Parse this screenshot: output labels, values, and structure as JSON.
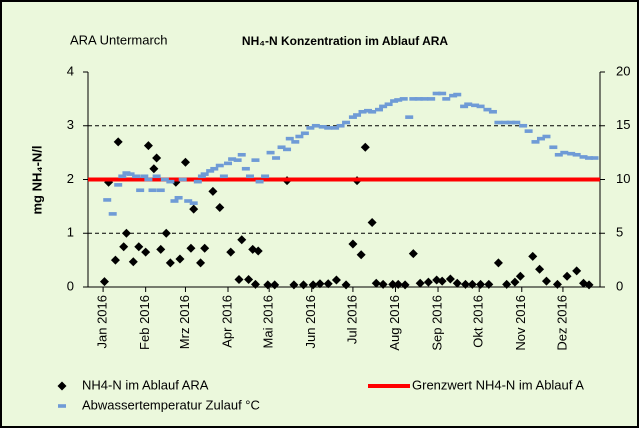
{
  "chart_data": {
    "type": "scatter",
    "title": "NH₄-N Konzentration im Ablauf ARA",
    "annotation": "ARA Untermarch",
    "y_label": "mg NH₄-N/l",
    "xlim": [
      -11,
      362
    ],
    "xticks": [
      {
        "value": 0,
        "label": "Jan 2016"
      },
      {
        "value": 31,
        "label": "Feb 2016"
      },
      {
        "value": 60,
        "label": "Mrz 2016"
      },
      {
        "value": 91,
        "label": "Apr 2016"
      },
      {
        "value": 121,
        "label": "Mai 2016"
      },
      {
        "value": 152,
        "label": "Jun 2016"
      },
      {
        "value": 182,
        "label": "Jul 2016"
      },
      {
        "value": 213,
        "label": "Aug 2016"
      },
      {
        "value": 244,
        "label": "Sep 2016"
      },
      {
        "value": 274,
        "label": "Okt 2016"
      },
      {
        "value": 305,
        "label": "Nov 2016"
      },
      {
        "value": 335,
        "label": "Dez 2016"
      }
    ],
    "ylim": [
      0,
      4
    ],
    "yticks": [
      0,
      1,
      2,
      3,
      4
    ],
    "y2lim": [
      0,
      20
    ],
    "y2ticks": [
      0,
      5,
      10,
      15,
      20
    ],
    "grid": true,
    "series": [
      {
        "name": "NH4-N im Ablauf ARA",
        "color": "#000000",
        "marker": "diamond",
        "axis": "y",
        "x": [
          1,
          4,
          11,
          9,
          15,
          17,
          22,
          26,
          31,
          33,
          37,
          39,
          42,
          46,
          49,
          53,
          56,
          60,
          64,
          66,
          71,
          74,
          80,
          85,
          93,
          101,
          99,
          109,
          113,
          106,
          111,
          120,
          125,
          134,
          139,
          146,
          153,
          158,
          164,
          170,
          177,
          182,
          185,
          188,
          191,
          196,
          199,
          204,
          211,
          215,
          220,
          226,
          231,
          237,
          243,
          247,
          253,
          258,
          264,
          269,
          275,
          281,
          288,
          294,
          300,
          304,
          313,
          318,
          323,
          331,
          338,
          345,
          350,
          354
        ],
        "values": [
          0.1,
          1.95,
          2.7,
          0.5,
          0.75,
          1.0,
          0.47,
          0.75,
          0.65,
          2.63,
          2.2,
          2.4,
          0.7,
          1.0,
          0.45,
          1.95,
          0.52,
          2.32,
          0.72,
          1.45,
          0.45,
          0.72,
          1.78,
          1.48,
          0.65,
          0.88,
          0.14,
          0.7,
          0.67,
          0.14,
          0.05,
          0.04,
          0.04,
          1.98,
          0.04,
          0.04,
          0.04,
          0.06,
          0.06,
          0.13,
          0.04,
          0.8,
          1.98,
          0.6,
          2.6,
          1.2,
          0.07,
          0.05,
          0.05,
          0.05,
          0.04,
          0.62,
          0.07,
          0.09,
          0.13,
          0.11,
          0.15,
          0.07,
          0.05,
          0.05,
          0.05,
          0.05,
          0.45,
          0.05,
          0.09,
          0.2,
          0.57,
          0.33,
          0.11,
          0.05,
          0.2,
          0.3,
          0.07,
          0.04
        ]
      },
      {
        "name": "Grenzwert NH4-N im Ablauf A",
        "color": "#ff0000",
        "marker": "line",
        "axis": "y",
        "x": [
          -11,
          362
        ],
        "values": [
          2,
          2
        ]
      },
      {
        "name": "Abwassertemperatur Zulauf °C",
        "color": "#6f9bd6",
        "marker": "dash",
        "axis": "y2",
        "x": [
          3,
          7,
          11,
          14,
          17,
          20,
          24,
          27,
          30,
          33,
          36,
          39,
          42,
          45,
          49,
          52,
          55,
          58,
          62,
          66,
          69,
          72,
          74,
          78,
          81,
          85,
          88,
          91,
          94,
          98,
          101,
          104,
          107,
          111,
          114,
          118,
          122,
          126,
          130,
          134,
          136,
          140,
          143,
          147,
          151,
          155,
          160,
          164,
          169,
          173,
          177,
          182,
          185,
          189,
          193,
          196,
          201,
          204,
          208,
          212,
          215,
          219,
          223,
          226,
          230,
          234,
          239,
          243,
          247,
          250,
          255,
          258,
          263,
          266,
          271,
          275,
          280,
          284,
          288,
          293,
          297,
          301,
          306,
          310,
          315,
          319,
          323,
          328,
          332,
          336,
          341,
          345,
          350,
          354,
          358
        ],
        "values": [
          8.1,
          6.8,
          9.5,
          10.3,
          10.6,
          10.5,
          10.3,
          9.0,
          10.3,
          10.0,
          9.0,
          10.3,
          9.0,
          10.0,
          9.8,
          8.0,
          8.3,
          10.0,
          8.0,
          7.8,
          9.8,
          10.3,
          10.5,
          10.8,
          11.0,
          11.3,
          10.3,
          11.5,
          11.9,
          11.8,
          12.3,
          11.0,
          10.3,
          11.8,
          9.8,
          10.3,
          12.5,
          12.0,
          13.0,
          12.8,
          13.8,
          13.5,
          14.0,
          14.3,
          14.8,
          15.0,
          14.9,
          14.8,
          14.8,
          15.0,
          15.3,
          15.8,
          16.0,
          16.3,
          16.4,
          16.3,
          16.5,
          16.8,
          17.0,
          17.3,
          17.4,
          17.5,
          15.8,
          17.5,
          17.5,
          17.5,
          17.5,
          18.0,
          18.0,
          17.5,
          17.8,
          17.9,
          16.8,
          17.0,
          16.9,
          16.8,
          16.5,
          16.3,
          15.3,
          15.3,
          15.3,
          15.3,
          15.0,
          14.5,
          13.5,
          13.8,
          14.0,
          13.0,
          12.3,
          12.5,
          12.4,
          12.3,
          12.1,
          12.0,
          12.0
        ]
      }
    ]
  }
}
